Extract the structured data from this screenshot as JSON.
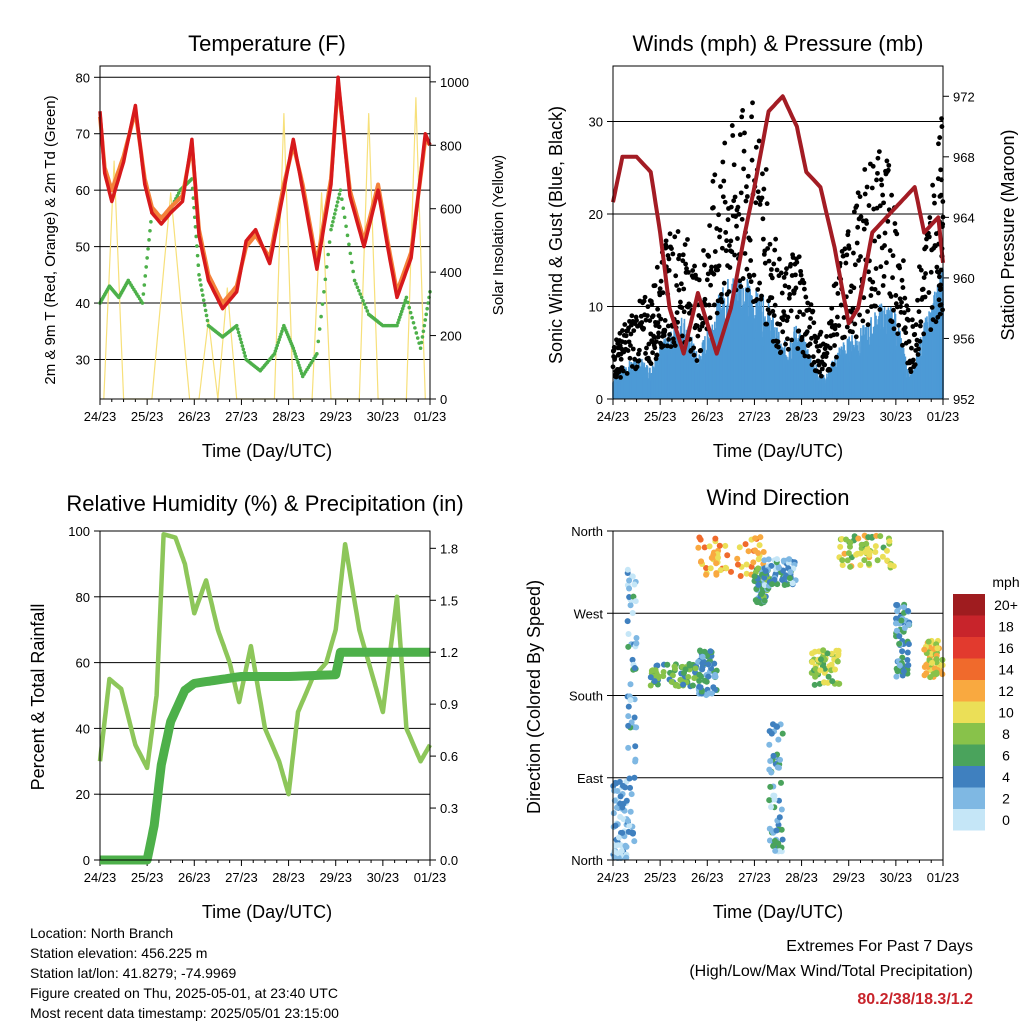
{
  "chart_data": [
    {
      "type": "line",
      "title": "Temperature (F)",
      "xlabel": "Time (Day/UTC)",
      "ylabel": "2m & 9m T (Red, Orange) & 2m Td (Green)",
      "y2label": "Solar Insolation (Yellow)",
      "categories": [
        "24/23",
        "25/23",
        "26/23",
        "27/23",
        "28/23",
        "29/23",
        "30/23",
        "01/23"
      ],
      "ylim": [
        23,
        82
      ],
      "y2lim": [
        0,
        1050
      ],
      "yticks": [
        30,
        40,
        50,
        60,
        70,
        80
      ],
      "y2ticks": [
        0,
        200,
        400,
        600,
        800,
        1000
      ],
      "colors": {
        "temp2m": "#d7191c",
        "temp9m": "#f4813a",
        "dewpoint": "#4db04a",
        "solar": "#f7e07a"
      },
      "series": [
        {
          "x": [
            0,
            0.1,
            0.25,
            0.5,
            0.75,
            0.95,
            1.1,
            1.3,
            1.5,
            1.75,
            1.95,
            2.1,
            2.3,
            2.6,
            2.9,
            3.1,
            3.3,
            3.6,
            3.9,
            4.1,
            4.3,
            4.6,
            4.9,
            5.05,
            5.3,
            5.6,
            5.9,
            6.1,
            6.3,
            6.6,
            6.9,
            7.0
          ],
          "values": [
            74,
            63,
            58,
            65,
            75,
            61,
            56,
            54,
            56,
            58,
            69,
            52,
            44,
            39,
            42,
            51,
            53,
            47,
            60,
            69,
            60,
            46,
            61,
            80,
            59,
            50,
            60,
            50,
            41,
            48,
            70,
            68
          ]
        },
        {
          "x": [
            0,
            0.1,
            0.25,
            0.5,
            0.75,
            0.95,
            1.1,
            1.3,
            1.5,
            1.75,
            1.95,
            2.1,
            2.3,
            2.6,
            2.9,
            3.1,
            3.3,
            3.6,
            3.9,
            4.1,
            4.3,
            4.6,
            4.9,
            5.05,
            5.3,
            5.6,
            5.9,
            6.1,
            6.3,
            6.6,
            6.9,
            7.0
          ],
          "values": [
            73,
            64,
            60,
            66,
            74,
            62,
            57,
            55,
            57,
            59,
            68,
            53,
            45,
            40,
            43,
            50,
            52,
            48,
            61,
            68,
            61,
            47,
            62,
            79,
            60,
            51,
            61,
            51,
            42,
            49,
            69,
            68
          ]
        },
        {
          "x": [
            0,
            0.2,
            0.4,
            0.6,
            0.9,
            1.1,
            1.4,
            1.7,
            1.95,
            2.1,
            2.3,
            2.6,
            2.9,
            3.1,
            3.4,
            3.7,
            3.9,
            4.1,
            4.3,
            4.6,
            4.9,
            5.1,
            5.4,
            5.7,
            6.0,
            6.3,
            6.5,
            6.8,
            7.0
          ],
          "values": [
            40,
            43,
            41,
            44,
            40,
            56,
            55,
            60,
            62,
            45,
            36,
            34,
            36,
            30,
            28,
            31,
            36,
            32,
            27,
            31,
            53,
            60,
            44,
            38,
            36,
            36,
            41,
            32,
            42
          ]
        },
        {
          "x": [
            0.08,
            0.3,
            0.5,
            1.1,
            1.5,
            1.9,
            2.1,
            2.3,
            2.5,
            2.7,
            2.9,
            3.1,
            3.3,
            3.5,
            3.7,
            3.9,
            4.1,
            4.3,
            4.5,
            4.7,
            4.9,
            5.1,
            5.3,
            5.5,
            5.7,
            5.9,
            6.1,
            6.3,
            6.5,
            6.7,
            6.9
          ],
          "values": [
            0,
            750,
            0,
            0,
            650,
            0,
            0,
            250,
            0,
            350,
            0,
            0,
            0,
            0,
            0,
            900,
            0,
            0,
            0,
            650,
            0,
            0,
            0,
            0,
            900,
            0,
            0,
            0,
            0,
            950,
            0
          ]
        }
      ]
    },
    {
      "type": "scatter",
      "title": "Winds (mph) & Pressure (mb)",
      "xlabel": "Time (Day/UTC)",
      "ylabel": "Sonic Wind & Gust (Blue, Black)",
      "y2label": "Station Pressure (Maroon)",
      "categories": [
        "24/23",
        "25/23",
        "26/23",
        "27/23",
        "28/23",
        "29/23",
        "30/23",
        "01/23"
      ],
      "ylim": [
        0,
        36
      ],
      "y2lim": [
        952,
        974
      ],
      "yticks": [
        0,
        10,
        20,
        30
      ],
      "y2ticks": [
        952,
        956,
        960,
        964,
        968,
        972
      ],
      "colors": {
        "wind": "#4d9ad6",
        "gust": "#000000",
        "pressure": "#a31c24"
      },
      "series": [
        {
          "x": [
            0,
            0.2,
            0.5,
            0.8,
            1.0,
            1.2,
            1.5,
            1.8,
            2.1,
            2.4,
            2.7,
            3.0,
            3.3,
            3.6,
            3.9,
            4.2,
            4.5,
            4.8,
            5.1,
            5.4,
            5.7,
            6.0,
            6.3,
            6.6,
            6.9,
            7.0
          ],
          "values": [
            2,
            3,
            4,
            3,
            5,
            6,
            8,
            4,
            8,
            11,
            12,
            10,
            9,
            5,
            7,
            4,
            2,
            5,
            6,
            7,
            9,
            8,
            2,
            7,
            11,
            12
          ]
        },
        {
          "x": [
            0,
            0.2,
            0.5,
            0.8,
            1.0,
            1.2,
            1.5,
            1.8,
            2.1,
            2.4,
            2.7,
            3.0,
            3.3,
            3.6,
            3.9,
            4.2,
            4.5,
            4.8,
            5.1,
            5.4,
            5.7,
            6.0,
            6.3,
            6.6,
            6.9,
            7.0
          ],
          "values": [
            5,
            6,
            8,
            9,
            12,
            14,
            15,
            10,
            18,
            22,
            24,
            25,
            18,
            10,
            14,
            8,
            5,
            12,
            16,
            20,
            22,
            18,
            6,
            14,
            22,
            24
          ]
        },
        {
          "x": [
            0,
            0.2,
            0.5,
            0.8,
            1.0,
            1.2,
            1.5,
            1.8,
            2.0,
            2.2,
            2.5,
            2.8,
            3.0,
            3.3,
            3.6,
            3.9,
            4.1,
            4.4,
            4.7,
            5.0,
            5.2,
            5.5,
            5.8,
            6.1,
            6.4,
            6.6,
            6.9,
            7.0
          ],
          "values": [
            965,
            968,
            968,
            967,
            963,
            958,
            955,
            959,
            957,
            955,
            958,
            963,
            966,
            971,
            972,
            970,
            967,
            966,
            962,
            957,
            958,
            963,
            964,
            965,
            966,
            963,
            964,
            961
          ]
        }
      ]
    },
    {
      "type": "line",
      "title": "Relative Humidity (%) & Precipitation (in)",
      "xlabel": "Time (Day/UTC)",
      "ylabel": "Percent & Total Rainfall",
      "categories": [
        "24/23",
        "25/23",
        "26/23",
        "27/23",
        "28/23",
        "29/23",
        "30/23",
        "01/23"
      ],
      "ylim": [
        0,
        100
      ],
      "y2lim": [
        0,
        1.9
      ],
      "yticks": [
        0,
        20,
        40,
        60,
        80,
        100
      ],
      "y2ticks": [
        "0.0",
        "0.3",
        "0.6",
        "0.9",
        "1.2",
        "1.5",
        "1.8"
      ],
      "colors": {
        "rh": "#8dc65a",
        "precip": "#4db04a"
      },
      "series": [
        {
          "x": [
            0,
            0.2,
            0.45,
            0.75,
            1.0,
            1.2,
            1.35,
            1.6,
            1.8,
            2.0,
            2.25,
            2.5,
            2.75,
            2.95,
            3.2,
            3.5,
            3.8,
            4.0,
            4.2,
            4.5,
            4.8,
            5.0,
            5.2,
            5.5,
            5.8,
            6.0,
            6.3,
            6.5,
            6.8,
            7.0
          ],
          "values": [
            30,
            55,
            52,
            35,
            28,
            50,
            99,
            98,
            90,
            75,
            85,
            70,
            60,
            48,
            65,
            40,
            30,
            20,
            45,
            55,
            60,
            70,
            96,
            70,
            55,
            45,
            80,
            40,
            30,
            35
          ]
        },
        {
          "x": [
            0,
            1.0,
            1.15,
            1.3,
            1.5,
            1.8,
            2.0,
            2.5,
            3.0,
            4.0,
            5.0,
            5.1,
            6.0,
            7.0
          ],
          "values": [
            0.0,
            0.0,
            0.2,
            0.55,
            0.8,
            0.98,
            1.02,
            1.04,
            1.06,
            1.06,
            1.07,
            1.2,
            1.2,
            1.2
          ]
        }
      ]
    },
    {
      "type": "scatter",
      "title": "Wind Direction",
      "xlabel": "Time (Day/UTC)",
      "ylabel": "Direction (Colored By Speed)",
      "categories": [
        "24/23",
        "25/23",
        "26/23",
        "27/23",
        "28/23",
        "29/23",
        "30/23",
        "01/23"
      ],
      "yticks": [
        "North",
        "East",
        "South",
        "West",
        "North"
      ],
      "legend": {
        "title": "mph",
        "labels": [
          "20+",
          "18",
          "16",
          "14",
          "12",
          "10",
          "8",
          "6",
          "4",
          "2",
          "0"
        ],
        "colors": [
          "#9f1c1f",
          "#c8242b",
          "#e23a2e",
          "#f06a2c",
          "#f9a940",
          "#ebdf57",
          "#88c24a",
          "#4aa35c",
          "#3f80bf",
          "#7fb8e3",
          "#c5e6f7"
        ]
      },
      "clusters": [
        {
          "x": [
            0.0,
            0.3
          ],
          "dir": [
            0,
            90
          ],
          "speed": 2
        },
        {
          "x": [
            0.3,
            0.5
          ],
          "dir": [
            20,
            330
          ],
          "speed": 3
        },
        {
          "x": [
            0.8,
            1.8
          ],
          "dir": [
            190,
            215
          ],
          "speed": 6
        },
        {
          "x": [
            1.8,
            2.2
          ],
          "dir": [
            180,
            230
          ],
          "speed": 4
        },
        {
          "x": [
            1.8,
            3.2
          ],
          "dir": [
            310,
            355
          ],
          "speed": 12
        },
        {
          "x": [
            3.0,
            3.3
          ],
          "dir": [
            280,
            320
          ],
          "speed": 5
        },
        {
          "x": [
            3.2,
            3.9
          ],
          "dir": [
            300,
            330
          ],
          "speed": 3
        },
        {
          "x": [
            3.3,
            3.6
          ],
          "dir": [
            0,
            150
          ],
          "speed": 3
        },
        {
          "x": [
            4.2,
            4.8
          ],
          "dir": [
            190,
            230
          ],
          "speed": 8
        },
        {
          "x": [
            4.8,
            6.0
          ],
          "dir": [
            320,
            355
          ],
          "speed": 9
        },
        {
          "x": [
            6.0,
            6.3
          ],
          "dir": [
            200,
            280
          ],
          "speed": 4
        },
        {
          "x": [
            6.6,
            7.0
          ],
          "dir": [
            200,
            240
          ],
          "speed": 10
        }
      ]
    }
  ],
  "info": {
    "location": "Location: North Branch",
    "elevation": "Station elevation: 456.225 m",
    "latlon": "Station lat/lon: 41.8279; -74.9969",
    "created": "Figure created on Thu, 2025-05-01, at 23:40 UTC",
    "recent": "Most recent data timestamp: 2025/05/01 23:15:00"
  },
  "extremes": {
    "line1": "Extremes For Past 7 Days",
    "line2": "(High/Low/Max Wind/Total Precipitation)",
    "values": "80.2/38/18.3/1.2"
  }
}
